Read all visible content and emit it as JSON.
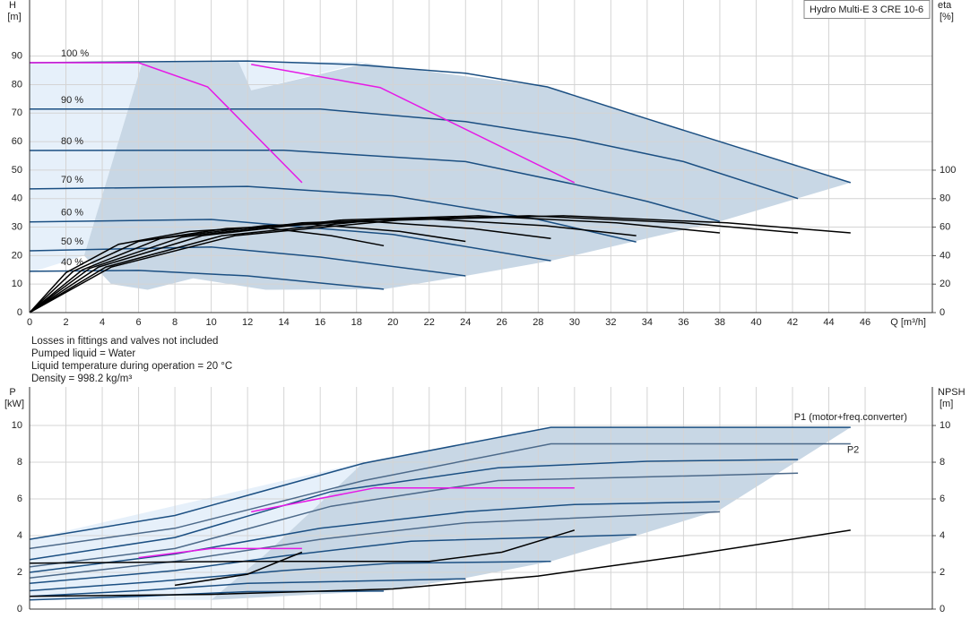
{
  "notes": [
    "Losses in fittings and valves not included",
    "Pumped liquid = Water",
    "Liquid temperature during operation = 20 °C",
    "Density = 998.2 kg/m³"
  ],
  "chart_data": [
    {
      "type": "line",
      "title": "Hydro Multi-E 3 CRE 10-6",
      "x_label": "Q [m³/h]",
      "y_label": "H",
      "y_unit": "[m]",
      "y2_label": "eta",
      "y2_unit": "[%]",
      "xlim": [
        0,
        49.7
      ],
      "ylim": [
        0,
        109.7
      ],
      "y2lim": [
        0,
        219.5
      ],
      "xticks": [
        0,
        2,
        4,
        6,
        8,
        10,
        12,
        14,
        16,
        18,
        20,
        22,
        24,
        26,
        28,
        30,
        32,
        34,
        36,
        38,
        40,
        42,
        44,
        46
      ],
      "yticks": [
        0,
        10,
        20,
        30,
        40,
        50,
        60,
        70,
        80,
        90
      ],
      "y2ticks": [
        0,
        20,
        40,
        60,
        80,
        100
      ],
      "grid": true,
      "xtick_labels": true,
      "name_position": "start",
      "areas": [
        {
          "color": "#e6f0fa",
          "x": [
            0,
            18.5,
            12.2,
            11.5,
            9,
            6.2,
            3,
            0
          ],
          "values": [
            88,
            88,
            78,
            70,
            75,
            87.7,
            20,
            14
          ]
        },
        {
          "color": "#c8d7e5",
          "x": [
            6.2,
            11.5,
            12.2,
            18.5,
            28.5,
            45.2,
            38,
            28.7,
            24,
            19.5,
            13,
            9,
            6.5,
            4.5,
            3
          ],
          "values": [
            87.7,
            88,
            78,
            87.5,
            79.2,
            45.6,
            32,
            18.2,
            12.9,
            8.2,
            8,
            12,
            8,
            10,
            20
          ]
        }
      ],
      "series": [
        {
          "name": "100 %",
          "color": "#1b4f82",
          "x": [
            0,
            6,
            12,
            18,
            24,
            28.5,
            34,
            40,
            45.2
          ],
          "values": [
            87.7,
            88,
            88.3,
            87,
            84,
            79.2,
            68,
            56,
            45.6
          ]
        },
        {
          "name": "90 %",
          "color": "#1b4f82",
          "x": [
            0,
            16,
            24,
            30,
            36,
            42.3
          ],
          "values": [
            71.4,
            71.4,
            67,
            61,
            53,
            40
          ]
        },
        {
          "name": "80 %",
          "color": "#1b4f82",
          "x": [
            0,
            14,
            24,
            30,
            34,
            38
          ],
          "values": [
            56.9,
            57,
            53,
            45,
            39,
            32
          ]
        },
        {
          "name": "70 %",
          "color": "#1b4f82",
          "x": [
            0,
            12,
            20,
            28,
            33.4
          ],
          "values": [
            43.4,
            44.3,
            41,
            32.7,
            24.8
          ]
        },
        {
          "name": "60 %",
          "color": "#1b4f82",
          "x": [
            0,
            10,
            20,
            28.7
          ],
          "values": [
            31.8,
            32.7,
            27.4,
            18.2
          ]
        },
        {
          "name": "50 %",
          "color": "#1b4f82",
          "x": [
            0,
            10,
            16,
            24
          ],
          "values": [
            21.7,
            23,
            19.5,
            12.9
          ]
        },
        {
          "name": "40 %",
          "color": "#1b4f82",
          "x": [
            0,
            6,
            12,
            19.5
          ],
          "values": [
            14.5,
            14.8,
            12.9,
            8.2
          ]
        },
        {
          "color": "#000000",
          "axis": "y2",
          "x": [
            0,
            4.5,
            11.3,
            20.3,
            29.4,
            38.4,
            45.2
          ],
          "values": [
            0,
            32,
            54,
            65,
            68,
            63,
            56
          ]
        },
        {
          "color": "#000000",
          "axis": "y2",
          "x": [
            0,
            4.2,
            10.6,
            19,
            27.5,
            36,
            42.3
          ],
          "values": [
            0,
            32,
            54,
            65,
            68,
            63,
            56
          ]
        },
        {
          "color": "#000000",
          "axis": "y2",
          "x": [
            0,
            3.8,
            9.5,
            17.1,
            24.7,
            32.3,
            38
          ],
          "values": [
            0,
            32,
            54,
            65,
            68,
            63,
            56
          ]
        },
        {
          "color": "#000000",
          "axis": "y2",
          "x": [
            0,
            3.3,
            8.4,
            15,
            21.7,
            28.4,
            33.4
          ],
          "values": [
            0,
            31,
            53,
            63,
            66,
            61,
            54
          ]
        },
        {
          "color": "#000000",
          "axis": "y2",
          "x": [
            0,
            2.9,
            7.2,
            12.9,
            18.7,
            24.4,
            28.7
          ],
          "values": [
            0,
            30,
            52,
            61,
            64,
            59,
            52
          ]
        },
        {
          "color": "#000000",
          "axis": "y2",
          "x": [
            0,
            2.4,
            6,
            10.8,
            15.6,
            20.4,
            24
          ],
          "values": [
            0,
            29,
            50,
            59,
            62,
            57,
            50
          ]
        },
        {
          "color": "#000000",
          "axis": "y2",
          "x": [
            0,
            2,
            4.9,
            8.8,
            12.7,
            16.6,
            19.5
          ],
          "values": [
            0,
            28,
            48,
            57,
            60,
            54,
            47
          ]
        },
        {
          "color": "#e619e6",
          "x": [
            0,
            6,
            9.8,
            15
          ],
          "values": [
            87.7,
            87.7,
            79.2,
            45.6
          ]
        },
        {
          "color": "#e619e6",
          "x": [
            12.2,
            19.3,
            30
          ],
          "values": [
            87.1,
            79,
            45.6
          ]
        }
      ]
    },
    {
      "type": "line",
      "y_label": "P",
      "y_unit": "[kW]",
      "y2_label": "NPSH",
      "y2_unit": "[m]",
      "xlim": [
        0,
        49.7
      ],
      "ylim": [
        0,
        12.1
      ],
      "y2lim": [
        0,
        12.1
      ],
      "xticks": [
        0,
        2,
        4,
        6,
        8,
        10,
        12,
        14,
        16,
        18,
        20,
        22,
        24,
        26,
        28,
        30,
        32,
        34,
        36,
        38,
        40,
        42,
        44,
        46
      ],
      "yticks": [
        0,
        2,
        4,
        6,
        8,
        10
      ],
      "y2ticks": [
        0,
        2,
        4,
        6,
        8,
        10
      ],
      "grid": true,
      "xtick_labels": false,
      "name_position": "end",
      "areas": [
        {
          "color": "#e6f0fa",
          "x": [
            0,
            18.4,
            13,
            10,
            0
          ],
          "values": [
            3.8,
            8,
            3,
            0.5,
            0.5
          ]
        },
        {
          "color": "#c8d7e5",
          "x": [
            10,
            13,
            18.4,
            28.7,
            45.2,
            38,
            33.4,
            28.7,
            24,
            19.5
          ],
          "values": [
            0.5,
            3,
            8,
            9.9,
            9.9,
            5.4,
            4,
            2.6,
            1.7,
            1
          ]
        }
      ],
      "series": [
        {
          "name": "P1 (motor+freq.converter)",
          "color": "#1b4f82",
          "x": [
            0,
            8,
            18.4,
            28.7,
            45.2
          ],
          "values": [
            3.8,
            5.1,
            7.95,
            9.9,
            9.9
          ]
        },
        {
          "name": "P2",
          "color": "#4d6a8a",
          "x": [
            0,
            8,
            18.4,
            28.7,
            45.2
          ],
          "values": [
            3.3,
            4.4,
            7,
            9,
            9
          ]
        },
        {
          "color": "#1b4f82",
          "x": [
            0,
            8,
            16.6,
            25.8,
            34,
            42.3
          ],
          "values": [
            2.7,
            3.9,
            6.4,
            7.7,
            8.05,
            8.15
          ]
        },
        {
          "color": "#4d6a8a",
          "x": [
            0,
            8,
            16.6,
            25.8,
            42.3
          ],
          "values": [
            2.3,
            3.3,
            5.6,
            7,
            7.4
          ]
        },
        {
          "color": "#1b4f82",
          "x": [
            0,
            8,
            16,
            24,
            30,
            38
          ],
          "values": [
            2,
            3,
            4.4,
            5.3,
            5.7,
            5.85
          ]
        },
        {
          "color": "#4d6a8a",
          "x": [
            0,
            8,
            16,
            24,
            38
          ],
          "values": [
            1.7,
            2.6,
            3.8,
            4.7,
            5.3
          ]
        },
        {
          "color": "#1b4f82",
          "x": [
            0,
            8,
            14,
            21,
            33.4
          ],
          "values": [
            1.4,
            2.1,
            2.9,
            3.7,
            4.05
          ]
        },
        {
          "color": "#1b4f82",
          "x": [
            0,
            7,
            14,
            20,
            28.7
          ],
          "values": [
            1,
            1.5,
            2.1,
            2.5,
            2.6
          ]
        },
        {
          "color": "#1b4f82",
          "x": [
            0,
            6,
            12,
            24
          ],
          "values": [
            0.7,
            1,
            1.4,
            1.65
          ]
        },
        {
          "color": "#1b4f82",
          "x": [
            0,
            6,
            12,
            19.5
          ],
          "values": [
            0.5,
            0.7,
            0.95,
            0.98
          ]
        },
        {
          "color": "#000000",
          "axis": "y2",
          "x": [
            0,
            10,
            20,
            28,
            36,
            45.2
          ],
          "values": [
            0.7,
            0.8,
            1.1,
            1.8,
            2.9,
            4.3
          ]
        },
        {
          "color": "#000000",
          "axis": "y2",
          "x": [
            0,
            12,
            22,
            26,
            30
          ],
          "values": [
            2.5,
            2.6,
            2.6,
            3.1,
            4.3
          ]
        },
        {
          "color": "#000000",
          "axis": "y2",
          "x": [
            8,
            12,
            15
          ],
          "values": [
            1.3,
            1.9,
            3.1
          ]
        },
        {
          "color": "#e619e6",
          "x": [
            12.2,
            19,
            30
          ],
          "values": [
            5.3,
            6.6,
            6.6
          ]
        },
        {
          "color": "#e619e6",
          "x": [
            6,
            10,
            15
          ],
          "values": [
            2.8,
            3.3,
            3.3
          ]
        }
      ]
    }
  ]
}
